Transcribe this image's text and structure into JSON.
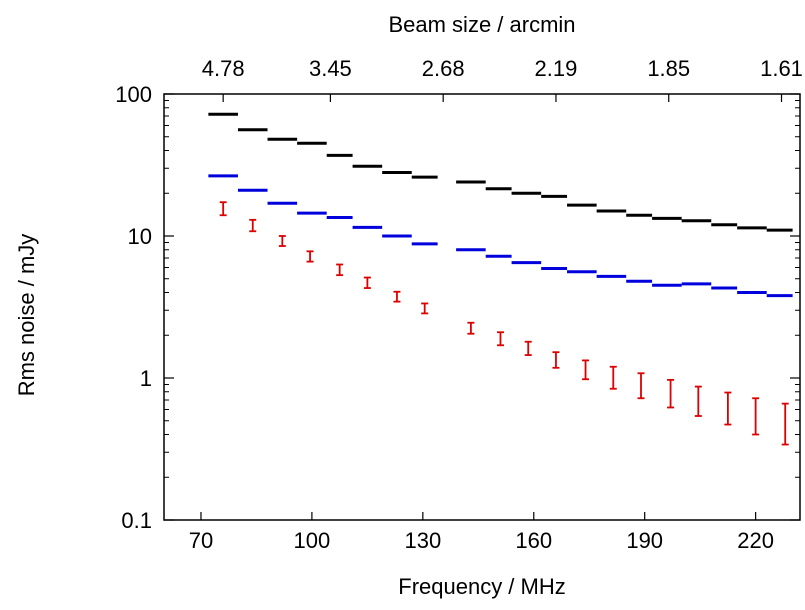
{
  "chart_data": {
    "type": "scatter",
    "xlabel": "Frequency / MHz",
    "ylabel": "Rms noise / mJy",
    "top_xlabel": "Beam size / arcmin",
    "xlim": [
      60,
      232
    ],
    "ylim": [
      0.1,
      100
    ],
    "y_scale": "log",
    "grid": false,
    "legend": "none",
    "x_ticks": [
      70,
      100,
      130,
      160,
      190,
      220
    ],
    "x_tick_labels": [
      "70",
      "100",
      "130",
      "160",
      "190",
      "220"
    ],
    "y_ticks": [
      0.1,
      1,
      10,
      100
    ],
    "y_tick_labels": [
      "0.1",
      "1",
      "10",
      "100"
    ],
    "top_ticks": [
      {
        "freq": 76,
        "label": "4.78"
      },
      {
        "freq": 105,
        "label": "3.45"
      },
      {
        "freq": 135.5,
        "label": "2.68"
      },
      {
        "freq": 166,
        "label": "2.19"
      },
      {
        "freq": 196.5,
        "label": "1.85"
      },
      {
        "freq": 227,
        "label": "1.61"
      }
    ],
    "series": [
      {
        "color": "#000000",
        "style": "step",
        "bands": [
          [
            72,
            80
          ],
          [
            80,
            88
          ],
          [
            88,
            96
          ],
          [
            96,
            104
          ],
          [
            104,
            111
          ],
          [
            111,
            119
          ],
          [
            119,
            127
          ],
          [
            127,
            134
          ],
          [
            139,
            147
          ],
          [
            147,
            154
          ],
          [
            154,
            162
          ],
          [
            162,
            169
          ],
          [
            169,
            177
          ],
          [
            177,
            185
          ],
          [
            185,
            192
          ],
          [
            192,
            200
          ],
          [
            200,
            208
          ],
          [
            208,
            215
          ],
          [
            215,
            223
          ],
          [
            223,
            230
          ]
        ],
        "values": [
          72,
          56,
          48,
          45,
          37,
          31,
          28,
          26,
          24,
          21.5,
          20,
          19,
          16.5,
          15,
          14,
          13.3,
          12.8,
          12,
          11.4,
          11
        ]
      },
      {
        "color": "#0000dd",
        "style": "step",
        "bands": [
          [
            72,
            80
          ],
          [
            80,
            88
          ],
          [
            88,
            96
          ],
          [
            96,
            104
          ],
          [
            104,
            111
          ],
          [
            111,
            119
          ],
          [
            119,
            127
          ],
          [
            127,
            134
          ],
          [
            139,
            147
          ],
          [
            147,
            154
          ],
          [
            154,
            162
          ],
          [
            162,
            169
          ],
          [
            169,
            177
          ],
          [
            177,
            185
          ],
          [
            185,
            192
          ],
          [
            192,
            200
          ],
          [
            200,
            208
          ],
          [
            208,
            215
          ],
          [
            215,
            223
          ],
          [
            223,
            230
          ]
        ],
        "values": [
          26.5,
          21,
          17,
          14.5,
          13.5,
          11.5,
          10,
          8.8,
          8,
          7.2,
          6.5,
          5.9,
          5.6,
          5.2,
          4.8,
          4.5,
          4.6,
          4.3,
          4,
          3.8
        ]
      },
      {
        "color": "#dd0000",
        "style": "errorbar",
        "x": [
          76,
          84,
          92,
          99.5,
          107.5,
          115,
          123,
          130.5,
          143,
          151,
          158.5,
          166,
          174,
          181.5,
          189,
          197,
          204.5,
          212.5,
          220,
          228
        ],
        "low": [
          14,
          10.8,
          8.5,
          6.6,
          5.3,
          4.3,
          3.45,
          2.85,
          2.05,
          1.7,
          1.45,
          1.18,
          0.98,
          0.84,
          0.72,
          0.62,
          0.54,
          0.47,
          0.4,
          0.34
        ],
        "high": [
          17.3,
          13,
          10,
          7.8,
          6.3,
          5.1,
          4.05,
          3.35,
          2.45,
          2.1,
          1.8,
          1.52,
          1.33,
          1.2,
          1.08,
          0.97,
          0.87,
          0.79,
          0.72,
          0.66
        ]
      }
    ]
  }
}
